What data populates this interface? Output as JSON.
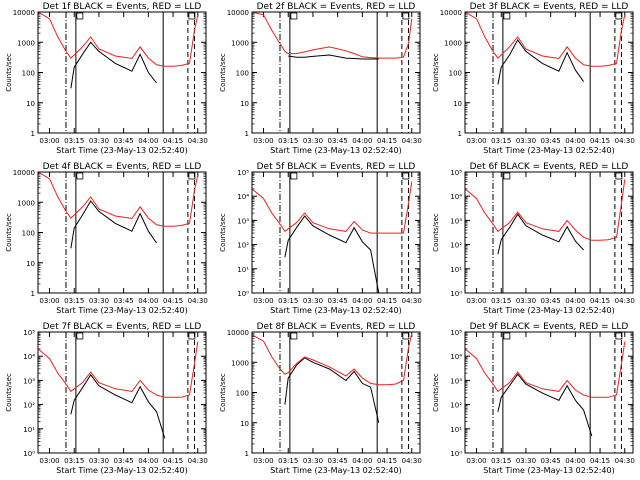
{
  "figure": {
    "start_time": "23-May-13 02:52:40",
    "colors": {
      "events": "#000000",
      "lld": "#e8231e",
      "axes": "#000000"
    },
    "common": {
      "xlabel": "Start Time (23-May-13 02:52:40)",
      "ylabel": "Counts/sec",
      "xtick_labels": [
        "03:00",
        "03:15",
        "03:30",
        "03:45",
        "04:00",
        "04:15",
        "04:30"
      ]
    }
  },
  "chart_data": [
    {
      "type": "line",
      "title": "Det 1f BLACK = Events, RED = LLD",
      "ylabel": "Counts/sec",
      "xlabel": "Start Time (23-May-13 02:52:40)",
      "y_scale": "log",
      "ylim": [
        1,
        10000
      ],
      "ytick_labels": [
        "1",
        "10",
        "100",
        "1000",
        "10000"
      ],
      "xtick_labels": [
        "03:00",
        "03:15",
        "03:30",
        "03:45",
        "04:00",
        "04:15",
        "04:30"
      ],
      "x": [
        "02:53",
        "03:00",
        "03:05",
        "03:10",
        "03:13",
        "03:15",
        "03:20",
        "03:25",
        "03:30",
        "03:40",
        "03:50",
        "03:55",
        "04:00",
        "04:05",
        "04:10",
        "04:15",
        "04:20",
        "04:25",
        "04:28",
        "04:30"
      ],
      "series": [
        {
          "name": "Events",
          "values": [
            null,
            null,
            null,
            null,
            30,
            150,
            400,
            1000,
            500,
            200,
            110,
            400,
            100,
            45,
            null,
            null,
            null,
            null,
            null,
            null
          ]
        },
        {
          "name": "LLD",
          "values": [
            10000,
            6000,
            1500,
            500,
            300,
            380,
            700,
            1500,
            600,
            350,
            290,
            700,
            300,
            180,
            160,
            160,
            170,
            200,
            2500,
            8000
          ]
        }
      ],
      "vlines": [
        {
          "x": "03:10",
          "style": "dash-dot"
        },
        {
          "x": "03:16",
          "style": "solid"
        },
        {
          "x": "04:09",
          "style": "solid"
        },
        {
          "x": "04:24",
          "style": "dashed"
        },
        {
          "x": "04:28",
          "style": "dashed"
        }
      ]
    },
    {
      "type": "line",
      "title": "Det 2f BLACK = Events, RED = LLD",
      "ylabel": "Counts/sec",
      "xlabel": "Start Time (23-May-13 02:52:40)",
      "y_scale": "log",
      "ylim": [
        1,
        10000
      ],
      "ytick_labels": [
        "1",
        "10",
        "100",
        "1000",
        "10000"
      ],
      "xtick_labels": [
        "03:00",
        "03:15",
        "03:30",
        "03:45",
        "04:00",
        "04:15",
        "04:30"
      ],
      "x": [
        "02:53",
        "03:00",
        "03:05",
        "03:10",
        "03:13",
        "03:15",
        "03:20",
        "03:25",
        "03:30",
        "03:40",
        "03:50",
        "03:55",
        "04:00",
        "04:05",
        "04:10",
        "04:15",
        "04:20",
        "04:25",
        "04:28",
        "04:30"
      ],
      "series": [
        {
          "name": "Events",
          "values": [
            null,
            null,
            null,
            null,
            null,
            350,
            320,
            320,
            340,
            380,
            300,
            290,
            280,
            280,
            280,
            null,
            null,
            null,
            null,
            null
          ]
        },
        {
          "name": "LLD",
          "values": [
            10000,
            8000,
            2500,
            900,
            500,
            420,
            420,
            480,
            560,
            700,
            520,
            420,
            330,
            310,
            300,
            300,
            300,
            320,
            900,
            6000
          ]
        }
      ],
      "vlines": [
        {
          "x": "03:10",
          "style": "dash-dot"
        },
        {
          "x": "03:16",
          "style": "solid"
        },
        {
          "x": "04:09",
          "style": "solid"
        },
        {
          "x": "04:24",
          "style": "dashed"
        },
        {
          "x": "04:28",
          "style": "dashed"
        }
      ]
    },
    {
      "type": "line",
      "title": "Det 3f BLACK = Events, RED = LLD",
      "ylabel": "Counts/sec",
      "xlabel": "Start Time (23-May-13 02:52:40)",
      "y_scale": "log",
      "ylim": [
        1,
        10000
      ],
      "ytick_labels": [
        "1",
        "10",
        "100",
        "1000",
        "10000"
      ],
      "xtick_labels": [
        "03:00",
        "03:15",
        "03:30",
        "03:45",
        "04:00",
        "04:15",
        "04:30"
      ],
      "x": [
        "02:53",
        "03:00",
        "03:05",
        "03:10",
        "03:13",
        "03:15",
        "03:20",
        "03:25",
        "03:30",
        "03:40",
        "03:50",
        "03:55",
        "04:00",
        "04:05",
        "04:10",
        "04:15",
        "04:20",
        "04:25",
        "04:28",
        "04:30"
      ],
      "series": [
        {
          "name": "Events",
          "values": [
            null,
            null,
            null,
            null,
            40,
            150,
            380,
            1200,
            500,
            200,
            110,
            450,
            120,
            50,
            null,
            null,
            null,
            null,
            null,
            null
          ]
        },
        {
          "name": "LLD",
          "values": [
            10000,
            6000,
            1500,
            500,
            300,
            380,
            700,
            1500,
            600,
            350,
            290,
            700,
            300,
            180,
            160,
            160,
            170,
            200,
            2500,
            8000
          ]
        }
      ],
      "vlines": [
        {
          "x": "03:10",
          "style": "dash-dot"
        },
        {
          "x": "03:16",
          "style": "solid"
        },
        {
          "x": "04:09",
          "style": "solid"
        },
        {
          "x": "04:24",
          "style": "dashed"
        },
        {
          "x": "04:28",
          "style": "dashed"
        }
      ]
    },
    {
      "type": "line",
      "title": "Det 4f BLACK = Events, RED = LLD",
      "ylabel": "Counts/sec",
      "xlabel": "Start Time (23-May-13 02:52:40)",
      "y_scale": "log",
      "ylim": [
        1,
        10000
      ],
      "ytick_labels": [
        "1",
        "10",
        "100",
        "1000",
        "10000"
      ],
      "xtick_labels": [
        "03:00",
        "03:15",
        "03:30",
        "03:45",
        "04:00",
        "04:15",
        "04:30"
      ],
      "x": [
        "02:53",
        "03:00",
        "03:05",
        "03:10",
        "03:13",
        "03:15",
        "03:20",
        "03:25",
        "03:30",
        "03:40",
        "03:50",
        "03:55",
        "04:00",
        "04:05",
        "04:10",
        "04:15",
        "04:20",
        "04:25",
        "04:28",
        "04:30"
      ],
      "series": [
        {
          "name": "Events",
          "values": [
            null,
            null,
            null,
            null,
            30,
            140,
            380,
            1100,
            500,
            200,
            110,
            420,
            110,
            45,
            null,
            null,
            null,
            null,
            null,
            null
          ]
        },
        {
          "name": "LLD",
          "values": [
            10000,
            6000,
            1500,
            500,
            300,
            380,
            700,
            1500,
            600,
            350,
            290,
            700,
            300,
            180,
            160,
            160,
            170,
            200,
            2500,
            8000
          ]
        }
      ],
      "vlines": [
        {
          "x": "03:10",
          "style": "dash-dot"
        },
        {
          "x": "03:16",
          "style": "solid"
        },
        {
          "x": "04:09",
          "style": "solid"
        },
        {
          "x": "04:24",
          "style": "dashed"
        },
        {
          "x": "04:28",
          "style": "dashed"
        }
      ]
    },
    {
      "type": "line",
      "title": "Det 5f BLACK = Events, RED = LLD",
      "ylabel": "Counts/sec",
      "xlabel": "Start Time (23-May-13 02:52:40)",
      "y_scale": "log",
      "ylim": [
        1,
        100000
      ],
      "ytick_labels": [
        "10⁰",
        "10¹",
        "10²",
        "10³",
        "10⁴",
        "10⁵"
      ],
      "xtick_labels": [
        "03:00",
        "03:15",
        "03:30",
        "03:45",
        "04:00",
        "04:15",
        "04:30"
      ],
      "x": [
        "02:53",
        "03:00",
        "03:05",
        "03:10",
        "03:13",
        "03:15",
        "03:20",
        "03:25",
        "03:30",
        "03:40",
        "03:50",
        "03:55",
        "04:00",
        "04:05",
        "04:10",
        "04:15",
        "04:20",
        "04:25",
        "04:28",
        "04:30"
      ],
      "series": [
        {
          "name": "Events",
          "values": [
            null,
            null,
            null,
            null,
            30,
            150,
            500,
            1500,
            600,
            250,
            120,
            500,
            130,
            60,
            1,
            null,
            null,
            null,
            null,
            null
          ]
        },
        {
          "name": "LLD",
          "values": [
            20000,
            8000,
            2000,
            700,
            350,
            450,
            800,
            2000,
            800,
            450,
            350,
            900,
            400,
            300,
            300,
            300,
            300,
            300,
            5000,
            40000
          ]
        }
      ],
      "vlines": [
        {
          "x": "03:10",
          "style": "dash-dot"
        },
        {
          "x": "03:16",
          "style": "solid"
        },
        {
          "x": "04:09",
          "style": "solid"
        },
        {
          "x": "04:24",
          "style": "dashed"
        },
        {
          "x": "04:28",
          "style": "dashed"
        }
      ]
    },
    {
      "type": "line",
      "title": "Det 6f BLACK = Events, RED = LLD",
      "ylabel": "Counts/sec",
      "xlabel": "Start Time (23-May-13 02:52:40)",
      "y_scale": "log",
      "ylim": [
        1,
        100000
      ],
      "ytick_labels": [
        "10⁰",
        "10¹",
        "10²",
        "10³",
        "10⁴",
        "10⁵"
      ],
      "xtick_labels": [
        "03:00",
        "03:15",
        "03:30",
        "03:45",
        "04:00",
        "04:15",
        "04:30"
      ],
      "x": [
        "02:53",
        "03:00",
        "03:05",
        "03:10",
        "03:13",
        "03:15",
        "03:20",
        "03:25",
        "03:30",
        "03:40",
        "03:50",
        "03:55",
        "04:00",
        "04:05",
        "04:10",
        "04:15",
        "04:20",
        "04:25",
        "04:28",
        "04:30"
      ],
      "series": [
        {
          "name": "Events",
          "values": [
            null,
            null,
            null,
            null,
            40,
            160,
            500,
            1800,
            600,
            250,
            130,
            550,
            140,
            60,
            null,
            null,
            null,
            null,
            null,
            null
          ]
        },
        {
          "name": "LLD",
          "values": [
            20000,
            8000,
            2000,
            700,
            350,
            450,
            800,
            2200,
            800,
            450,
            350,
            1000,
            400,
            200,
            150,
            150,
            160,
            200,
            5000,
            50000
          ]
        }
      ],
      "vlines": [
        {
          "x": "03:10",
          "style": "dash-dot"
        },
        {
          "x": "03:16",
          "style": "solid"
        },
        {
          "x": "04:09",
          "style": "solid"
        },
        {
          "x": "04:24",
          "style": "dashed"
        },
        {
          "x": "04:28",
          "style": "dashed"
        }
      ]
    },
    {
      "type": "line",
      "title": "Det 7f BLACK = Events, RED = LLD",
      "ylabel": "Counts/sec",
      "xlabel": "Start Time (23-May-13 02:52:40)",
      "y_scale": "log",
      "ylim": [
        1,
        100000
      ],
      "ytick_labels": [
        "10⁰",
        "10¹",
        "10²",
        "10³",
        "10⁴",
        "10⁵"
      ],
      "xtick_labels": [
        "03:00",
        "03:15",
        "03:30",
        "03:45",
        "04:00",
        "04:15",
        "04:30"
      ],
      "x": [
        "02:53",
        "03:00",
        "03:05",
        "03:10",
        "03:13",
        "03:15",
        "03:20",
        "03:25",
        "03:30",
        "03:40",
        "03:50",
        "03:55",
        "04:00",
        "04:05",
        "04:10",
        "04:15",
        "04:20",
        "04:25",
        "04:28",
        "04:30"
      ],
      "series": [
        {
          "name": "Events",
          "values": [
            null,
            null,
            null,
            null,
            40,
            150,
            500,
            1700,
            600,
            250,
            120,
            550,
            130,
            50,
            4,
            null,
            null,
            null,
            null,
            null
          ]
        },
        {
          "name": "LLD",
          "values": [
            20000,
            8000,
            2000,
            700,
            350,
            450,
            800,
            2200,
            800,
            450,
            350,
            1000,
            400,
            250,
            200,
            200,
            200,
            250,
            5000,
            40000
          ]
        }
      ],
      "vlines": [
        {
          "x": "03:10",
          "style": "dash-dot"
        },
        {
          "x": "03:16",
          "style": "solid"
        },
        {
          "x": "04:09",
          "style": "solid"
        },
        {
          "x": "04:24",
          "style": "dashed"
        },
        {
          "x": "04:28",
          "style": "dashed"
        }
      ]
    },
    {
      "type": "line",
      "title": "Det 8f BLACK = Events, RED = LLD",
      "ylabel": "Counts/sec",
      "xlabel": "Start Time (23-May-13 02:52:40)",
      "y_scale": "log",
      "ylim": [
        1,
        10000
      ],
      "ytick_labels": [
        "1",
        "10",
        "100",
        "1000",
        "10000"
      ],
      "xtick_labels": [
        "03:00",
        "03:15",
        "03:30",
        "03:45",
        "04:00",
        "04:15",
        "04:30"
      ],
      "x": [
        "02:53",
        "03:00",
        "03:05",
        "03:10",
        "03:13",
        "03:15",
        "03:20",
        "03:25",
        "03:30",
        "03:40",
        "03:50",
        "03:55",
        "04:00",
        "04:05",
        "04:10",
        "04:15",
        "04:20",
        "04:25",
        "04:28",
        "04:30"
      ],
      "series": [
        {
          "name": "Events",
          "values": [
            null,
            null,
            null,
            null,
            40,
            300,
            800,
            1400,
            1000,
            600,
            250,
            500,
            200,
            150,
            10,
            null,
            null,
            null,
            null,
            null
          ]
        },
        {
          "name": "LLD",
          "values": [
            8000,
            5000,
            1500,
            600,
            400,
            450,
            900,
            1500,
            1200,
            700,
            350,
            600,
            300,
            200,
            180,
            180,
            190,
            250,
            3000,
            9000
          ]
        }
      ],
      "vlines": [
        {
          "x": "03:10",
          "style": "dash-dot"
        },
        {
          "x": "03:16",
          "style": "solid"
        },
        {
          "x": "04:09",
          "style": "solid"
        },
        {
          "x": "04:24",
          "style": "dashed"
        },
        {
          "x": "04:28",
          "style": "dashed"
        }
      ]
    },
    {
      "type": "line",
      "title": "Det 9f BLACK = Events, RED = LLD",
      "ylabel": "Counts/sec",
      "xlabel": "Start Time (23-May-13 02:52:40)",
      "y_scale": "log",
      "ylim": [
        1,
        100000
      ],
      "ytick_labels": [
        "10⁰",
        "10¹",
        "10²",
        "10³",
        "10⁴",
        "10⁵"
      ],
      "xtick_labels": [
        "03:00",
        "03:15",
        "03:30",
        "03:45",
        "04:00",
        "04:15",
        "04:30"
      ],
      "x": [
        "02:53",
        "03:00",
        "03:05",
        "03:10",
        "03:13",
        "03:15",
        "03:20",
        "03:25",
        "03:30",
        "03:40",
        "03:50",
        "03:55",
        "04:00",
        "04:05",
        "04:10",
        "04:15",
        "04:20",
        "04:25",
        "04:28",
        "04:30"
      ],
      "series": [
        {
          "name": "Events",
          "values": [
            null,
            null,
            null,
            null,
            50,
            200,
            600,
            1800,
            700,
            300,
            150,
            600,
            150,
            60,
            5,
            null,
            null,
            null,
            null,
            null
          ]
        },
        {
          "name": "LLD",
          "values": [
            20000,
            8000,
            2000,
            700,
            350,
            450,
            800,
            2200,
            800,
            450,
            350,
            1000,
            400,
            250,
            200,
            200,
            200,
            250,
            5000,
            40000
          ]
        }
      ],
      "vlines": [
        {
          "x": "03:10",
          "style": "dash-dot"
        },
        {
          "x": "03:16",
          "style": "solid"
        },
        {
          "x": "04:09",
          "style": "solid"
        },
        {
          "x": "04:24",
          "style": "dashed"
        },
        {
          "x": "04:28",
          "style": "dashed"
        }
      ]
    }
  ]
}
